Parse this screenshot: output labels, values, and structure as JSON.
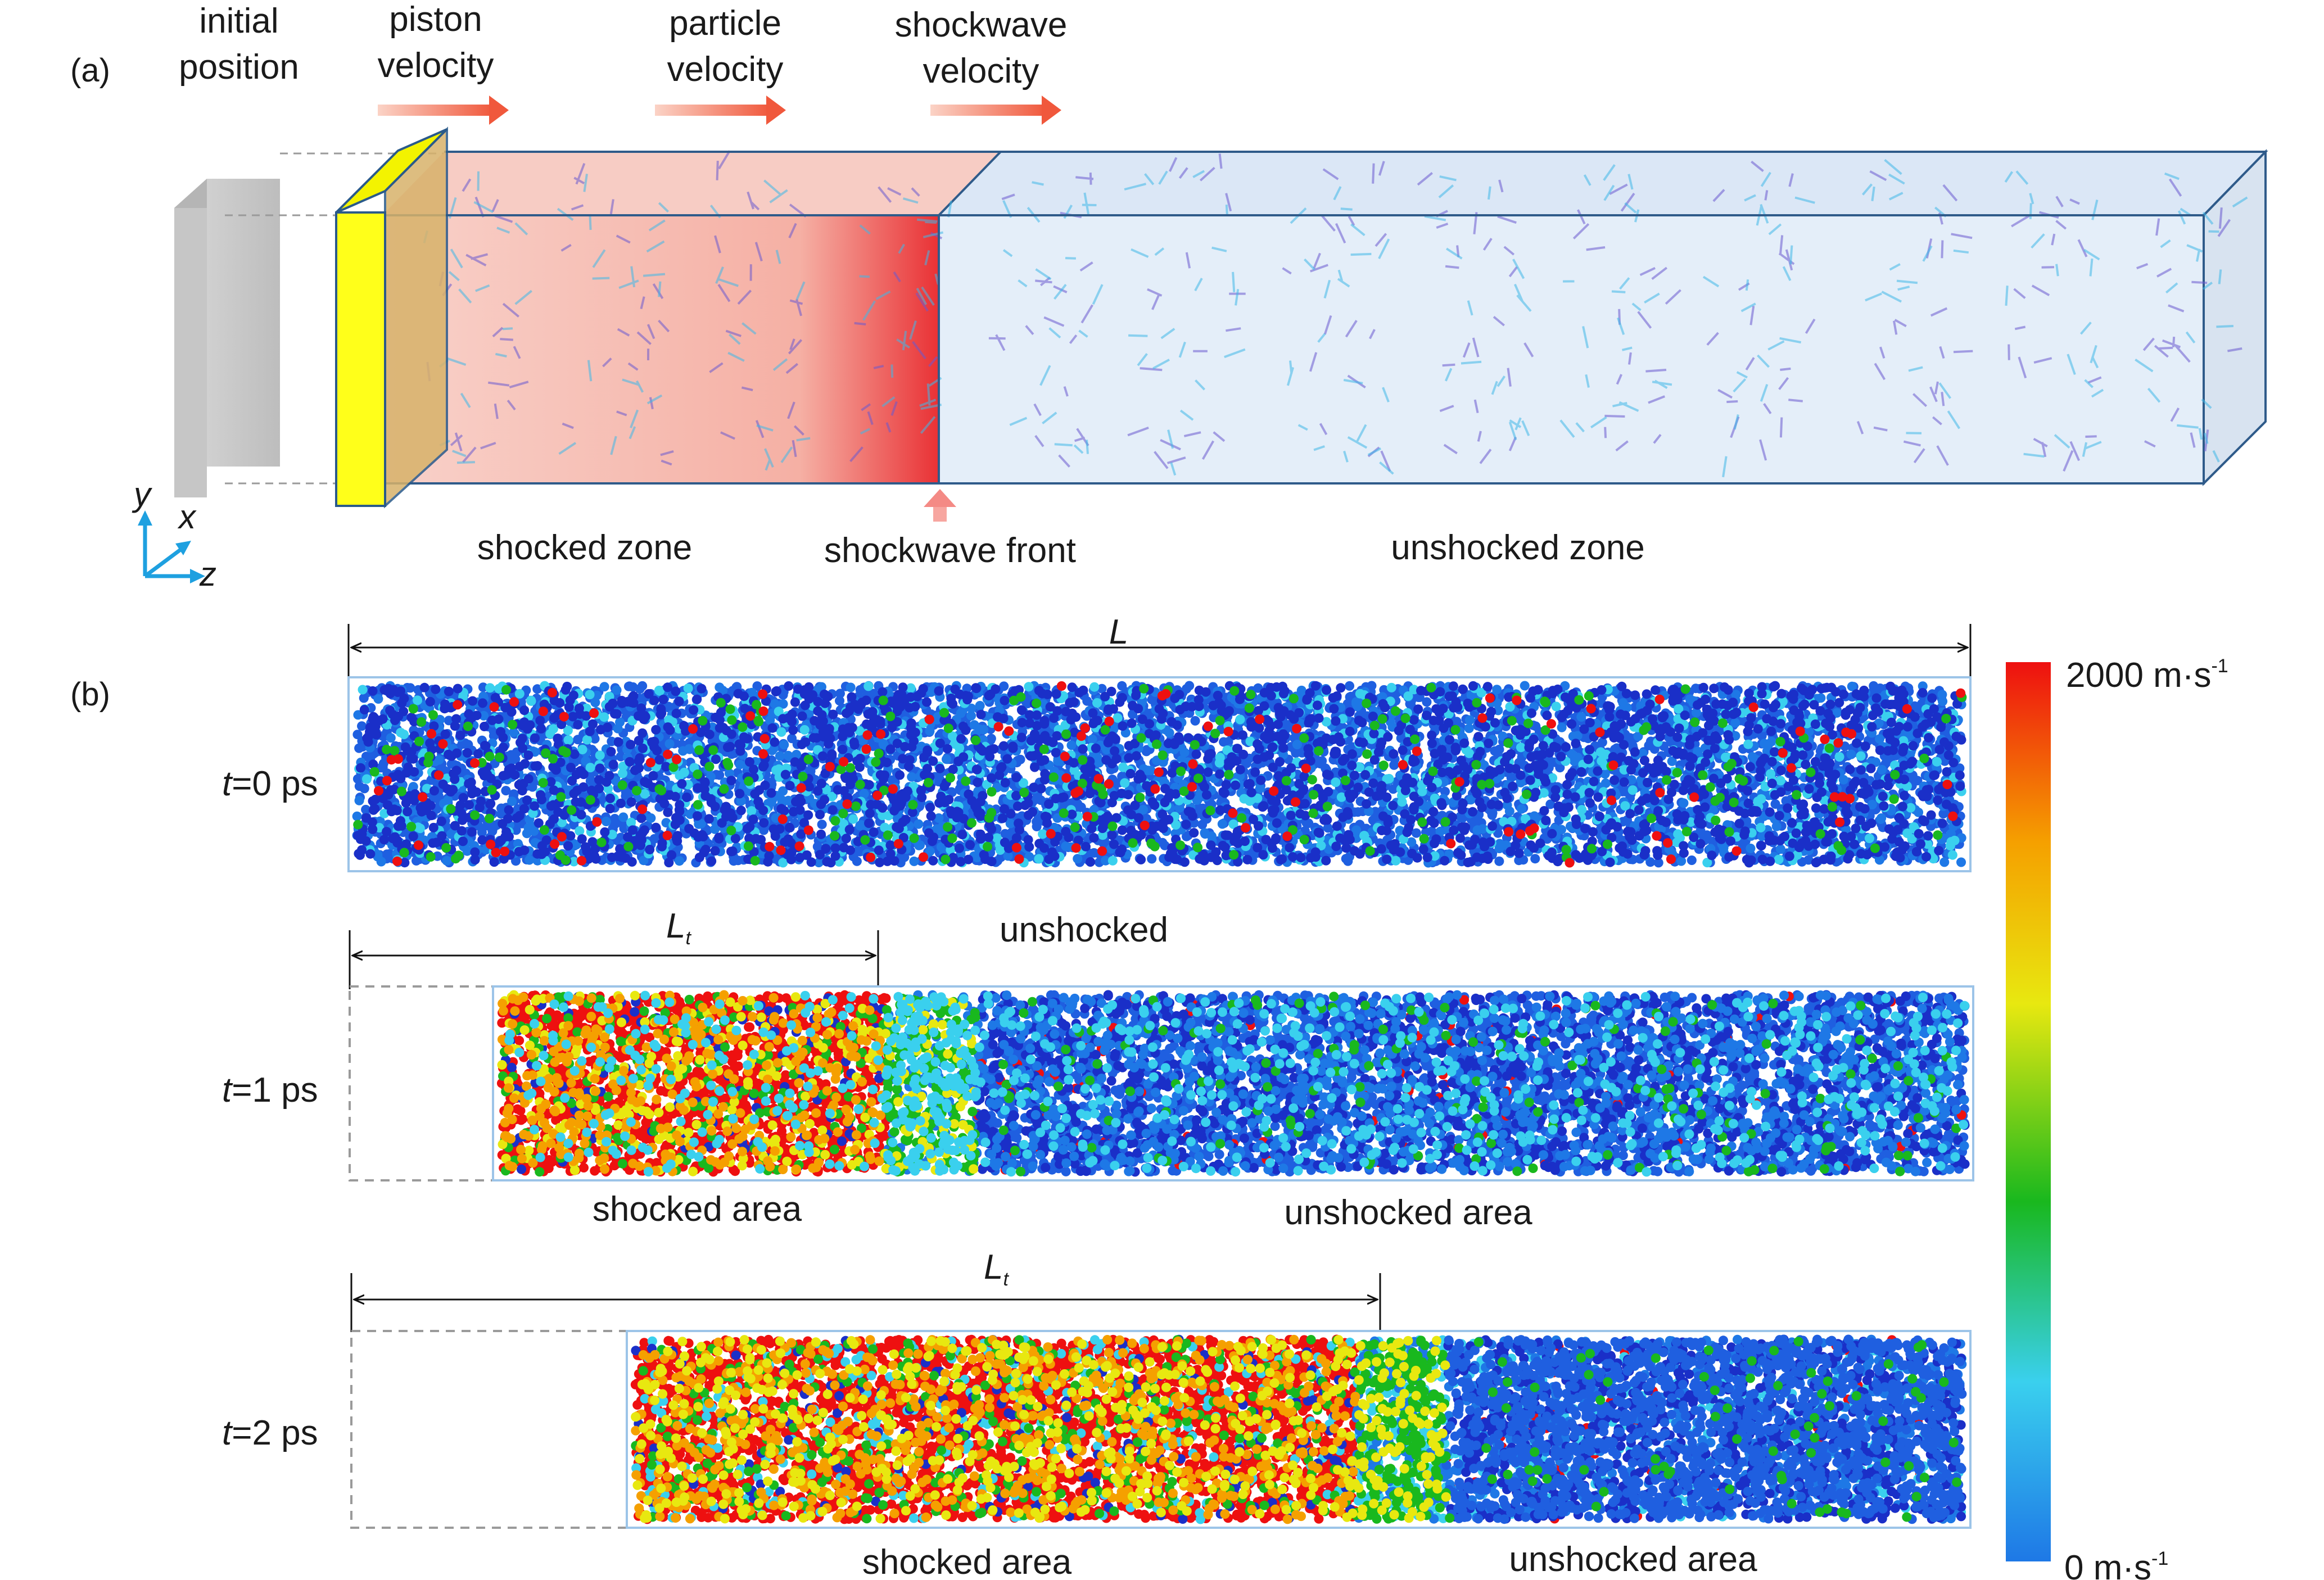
{
  "panel_a": {
    "label": "(a)",
    "initial_position": [
      "initial",
      "position"
    ],
    "piston_velocity": [
      "piston",
      "velocity"
    ],
    "particle_velocity": [
      "particle",
      "velocity"
    ],
    "shockwave_velocity": [
      "shockwave",
      "velocity"
    ],
    "shocked_zone": "shocked zone",
    "shockwave_front": "shockwave front",
    "unshocked_zone": "unshocked zone",
    "axes": {
      "y": "y",
      "x": "x",
      "z": "z"
    }
  },
  "panel_b": {
    "label": "(b)",
    "length_label": "L",
    "lt_label_main": "L",
    "lt_label_sub": "t",
    "rows": [
      {
        "time_var": "t",
        "time_value": "=0 ps",
        "shocked_fraction": 0.0,
        "top_label": "unshocked"
      },
      {
        "time_var": "t",
        "time_value": "=1 ps",
        "shocked_fraction": 0.28,
        "bottom_left": "shocked area",
        "bottom_right": "unshocked area"
      },
      {
        "time_var": "t",
        "time_value": "=2 ps",
        "shocked_fraction": 0.56,
        "bottom_left": "shocked area",
        "bottom_right": "unshocked area"
      }
    ],
    "colorbar": {
      "max_value": "2000 m·s",
      "max_exp": "-1",
      "min_value": "0 m·s",
      "min_exp": "-1",
      "colors": [
        "#1e78e6",
        "#3ad0ee",
        "#19b81e",
        "#e8e810",
        "#f5a000",
        "#ee1010"
      ]
    }
  }
}
